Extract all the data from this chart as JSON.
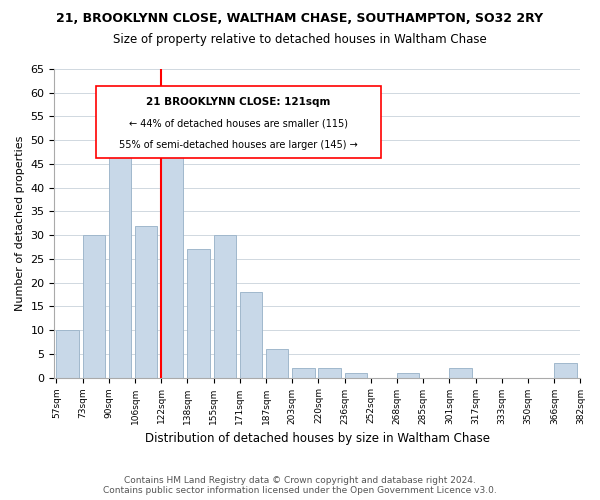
{
  "title": "21, BROOKLYNN CLOSE, WALTHAM CHASE, SOUTHAMPTON, SO32 2RY",
  "subtitle": "Size of property relative to detached houses in Waltham Chase",
  "xlabel": "Distribution of detached houses by size in Waltham Chase",
  "ylabel": "Number of detached properties",
  "bar_color": "#c8d8e8",
  "bar_edge_color": "#a0b8cc",
  "tick_labels": [
    "57sqm",
    "73sqm",
    "90sqm",
    "106sqm",
    "122sqm",
    "138sqm",
    "155sqm",
    "171sqm",
    "187sqm",
    "203sqm",
    "220sqm",
    "236sqm",
    "252sqm",
    "268sqm",
    "285sqm",
    "301sqm",
    "317sqm",
    "333sqm",
    "350sqm",
    "366sqm",
    "382sqm"
  ],
  "values": [
    10,
    30,
    47,
    32,
    51,
    27,
    30,
    18,
    6,
    2,
    2,
    1,
    0,
    1,
    0,
    2,
    0,
    0,
    0,
    3
  ],
  "ylim": [
    0,
    65
  ],
  "yticks": [
    0,
    5,
    10,
    15,
    20,
    25,
    30,
    35,
    40,
    45,
    50,
    55,
    60,
    65
  ],
  "property_line_label": "21 BROOKLYNN CLOSE: 121sqm",
  "annotation_line1": "← 44% of detached houses are smaller (115)",
  "annotation_line2": "55% of semi-detached houses are larger (145) →",
  "footer1": "Contains HM Land Registry data © Crown copyright and database right 2024.",
  "footer2": "Contains public sector information licensed under the Open Government Licence v3.0.",
  "background_color": "#ffffff",
  "grid_color": "#d0d8e0"
}
